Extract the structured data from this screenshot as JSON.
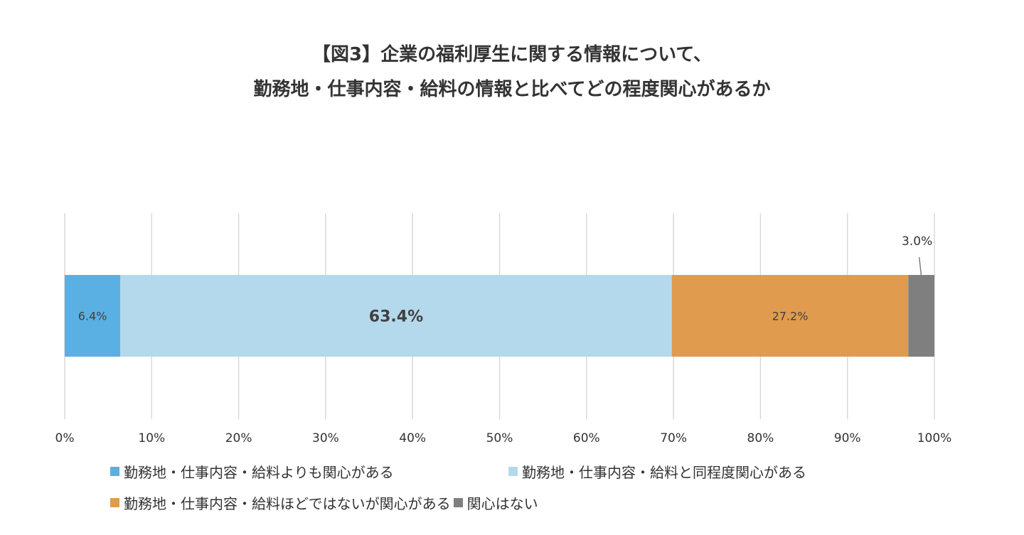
{
  "title_line1": "【図3】企業の福利厚生に関する情報について、",
  "title_line2": "勤務地・仕事内容・給料の情報と比べてどの程度関心があるか",
  "chart_data": {
    "type": "bar",
    "orientation": "horizontal",
    "stacked": true,
    "xlim": [
      0,
      100
    ],
    "x_ticks": [
      "0%",
      "10%",
      "20%",
      "30%",
      "40%",
      "50%",
      "60%",
      "70%",
      "80%",
      "90%",
      "100%"
    ],
    "grid": true,
    "legend_position": "bottom",
    "series": [
      {
        "name": "勤務地・仕事内容・給料よりも関心がある",
        "value": 6.4,
        "label": "6.4%",
        "color": "#5BB0E3"
      },
      {
        "name": "勤務地・仕事内容・給料と同程度関心がある",
        "value": 63.4,
        "label": "63.4%",
        "color": "#B4D9EC"
      },
      {
        "name": "勤務地・仕事内容・給料ほどではないが関心がある",
        "value": 27.2,
        "label": "27.2%",
        "color": "#E09B4E"
      },
      {
        "name": "関心はない",
        "value": 3.0,
        "label": "3.0%",
        "color": "#7F7F7F"
      }
    ]
  }
}
